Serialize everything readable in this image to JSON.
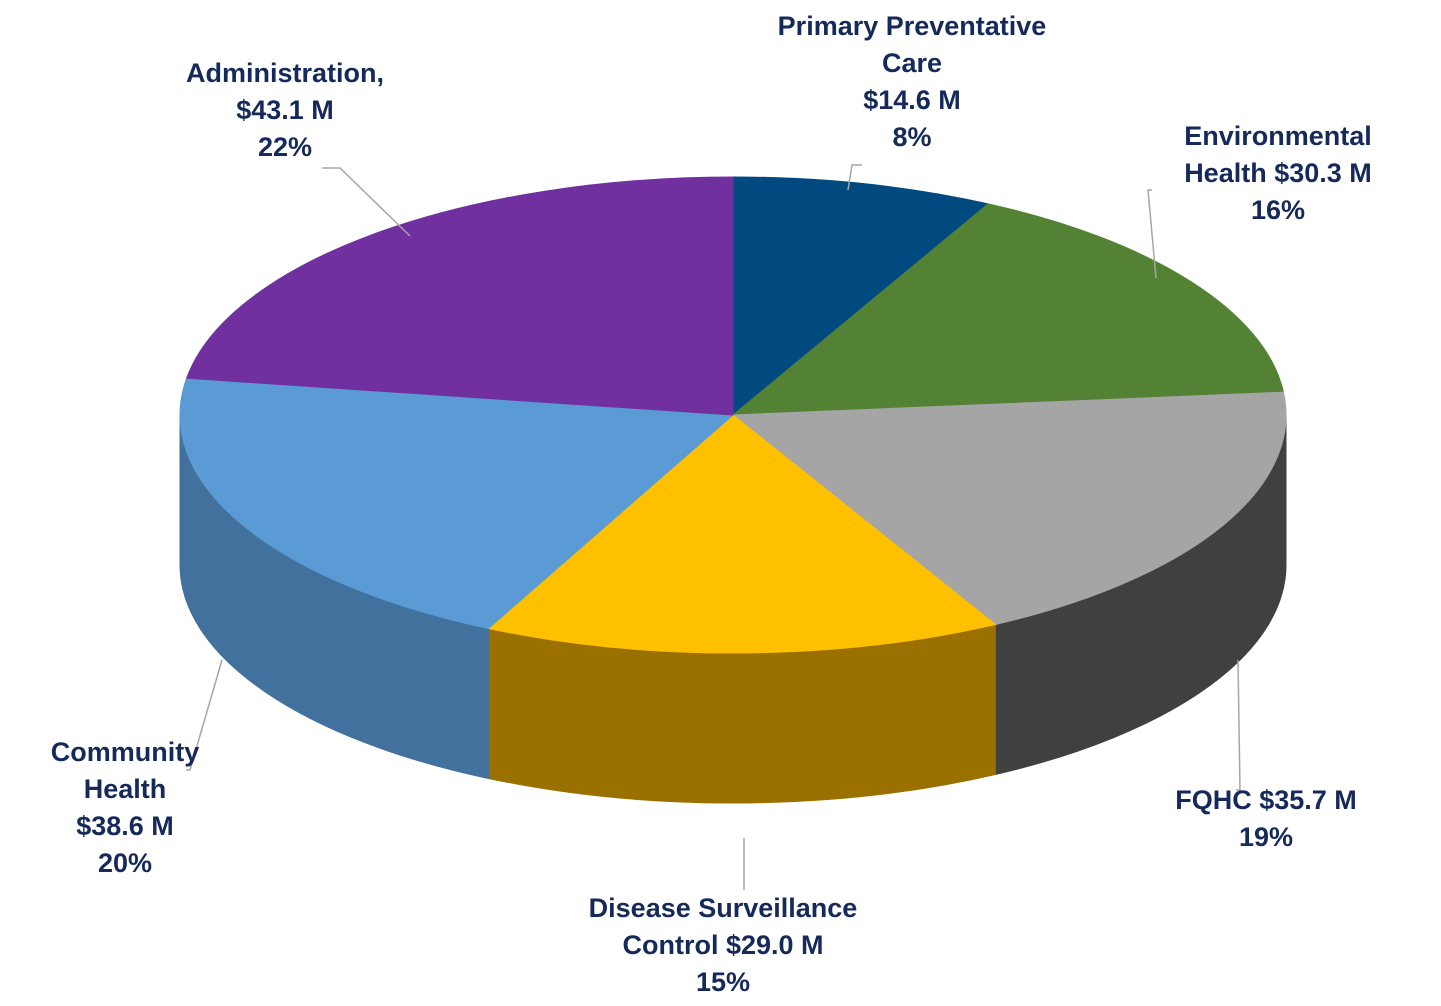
{
  "chart_data": {
    "type": "pie3d",
    "categories": [
      "Primary Preventative Care",
      "Environmental Health",
      "FQHC",
      "Disease Surveillance Control",
      "Community Health",
      "Administration,"
    ],
    "values": [
      14.6,
      30.3,
      35.7,
      29.0,
      38.6,
      43.1
    ],
    "value_labels": [
      "$14.6 M",
      "$30.3 M",
      "$35.7 M",
      "$29.0 M",
      "$38.6 M",
      "$43.1 M"
    ],
    "percents": [
      8,
      16,
      19,
      15,
      20,
      22
    ],
    "percent_labels": [
      "8%",
      "16%",
      "19%",
      "15%",
      "20%",
      "22%"
    ],
    "colors": [
      "#004a80",
      "#548235",
      "#a5a5a5",
      "#ffc000",
      "#5b9bd5",
      "#7030a0"
    ],
    "side_colors": [
      "#003358",
      "#3a5a25",
      "#404040",
      "#9a7000",
      "#41719c",
      "#4e2170"
    ]
  }
}
